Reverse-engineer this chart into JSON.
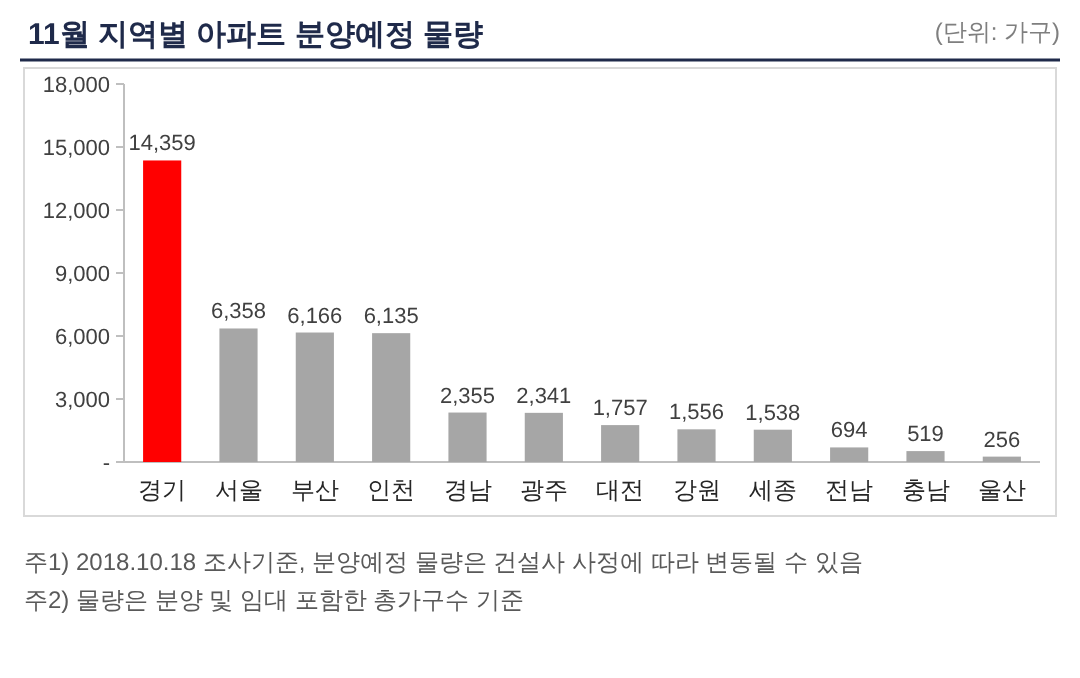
{
  "chart_data": {
    "type": "bar",
    "title": "11월 지역별 아파트 분양예정 물량",
    "subtitle": "(단위: 가구)",
    "categories": [
      "경기",
      "서울",
      "부산",
      "인천",
      "경남",
      "광주",
      "대전",
      "강원",
      "세종",
      "전남",
      "충남",
      "울산"
    ],
    "values": [
      14359,
      6358,
      6166,
      6135,
      2355,
      2341,
      1757,
      1556,
      1538,
      694,
      519,
      256
    ],
    "colors": [
      "#ff0000",
      "#a6a6a6",
      "#a6a6a6",
      "#a6a6a6",
      "#a6a6a6",
      "#a6a6a6",
      "#a6a6a6",
      "#a6a6a6",
      "#a6a6a6",
      "#a6a6a6",
      "#a6a6a6",
      "#a6a6a6"
    ],
    "ylim": [
      0,
      18000
    ],
    "yticks": [
      {
        "value": 0,
        "label": "-"
      },
      {
        "value": 3000,
        "label": "3,000"
      },
      {
        "value": 6000,
        "label": "6,000"
      },
      {
        "value": 9000,
        "label": "9,000"
      },
      {
        "value": 12000,
        "label": "12,000"
      },
      {
        "value": 15000,
        "label": "15,000"
      },
      {
        "value": 18000,
        "label": "18,000"
      }
    ],
    "value_labels": [
      "14,359",
      "6,358",
      "6,166",
      "6,135",
      "2,355",
      "2,341",
      "1,757",
      "1,556",
      "1,538",
      "694",
      "519",
      "256"
    ],
    "grid": false,
    "annotations": [
      "주1) 2018.10.18 조사기준, 분양예정 물량은 건설사 사정에 따라 변동될 수 있음",
      "주2) 물량은 분양 및 임대 포함한 총가구수 기준"
    ]
  }
}
